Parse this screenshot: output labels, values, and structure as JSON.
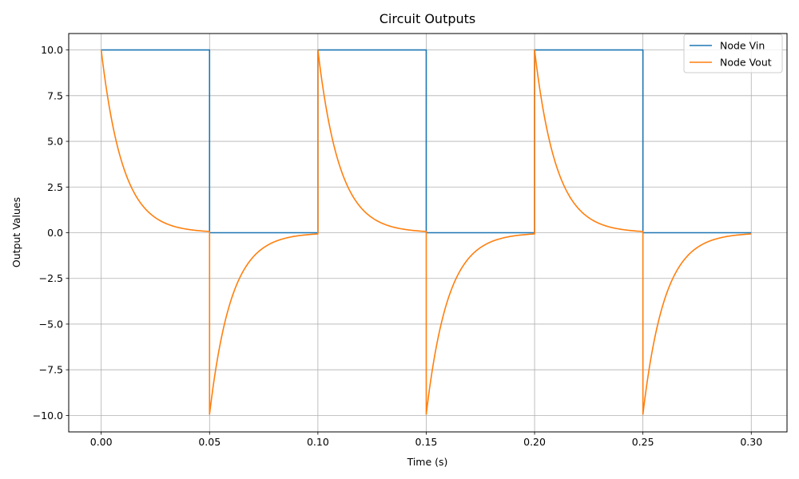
{
  "chart_data": {
    "type": "line",
    "title": "Circuit Outputs",
    "xlabel": "Time (s)",
    "ylabel": "Output Values",
    "xlim": [
      -0.015,
      0.3165
    ],
    "ylim": [
      -10.9,
      10.9
    ],
    "grid": true,
    "legend_position": "top-right",
    "x_ticks": [
      0.0,
      0.05,
      0.1,
      0.15,
      0.2,
      0.25,
      0.3
    ],
    "x_tick_labels": [
      "0.00",
      "0.05",
      "0.10",
      "0.15",
      "0.20",
      "0.25",
      "0.30"
    ],
    "y_ticks": [
      -10.0,
      -7.5,
      -5.0,
      -2.5,
      0.0,
      2.5,
      5.0,
      7.5,
      10.0
    ],
    "y_tick_labels": [
      "−10.0",
      "−7.5",
      "−5.0",
      "−2.5",
      "0.0",
      "2.5",
      "5.0",
      "7.5",
      "10.0"
    ],
    "series": [
      {
        "name": "Node Vin",
        "color": "#1f77b4",
        "kind": "square_wave",
        "high": 10.0,
        "low": 0.0,
        "period": 0.1,
        "duty": 0.5,
        "t_start": 0.0,
        "t_end": 0.3
      },
      {
        "name": "Node Vout",
        "color": "#ff7f0e",
        "kind": "rc_highpass_response",
        "amplitude": 10.0,
        "time_constant": 0.01,
        "period": 0.1,
        "duty": 0.5,
        "t_start": 0.0,
        "t_end": 0.3
      }
    ]
  }
}
